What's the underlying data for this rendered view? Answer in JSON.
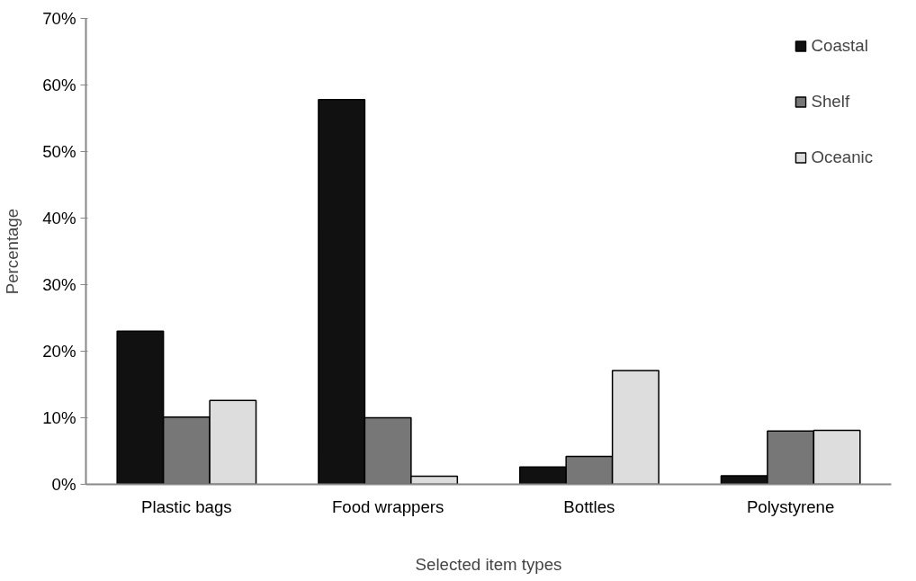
{
  "chart_data": {
    "type": "bar",
    "xlabel": "Selected item types",
    "ylabel": "Percentage",
    "categories": [
      "Plastic bags",
      "Food wrappers",
      "Bottles",
      "Polystyrene"
    ],
    "series": [
      {
        "name": "Coastal",
        "color": "#111111",
        "values": [
          23,
          57.8,
          2.6,
          1.3
        ]
      },
      {
        "name": "Shelf",
        "color": "#777777",
        "values": [
          10.1,
          10,
          4.2,
          8
        ]
      },
      {
        "name": "Oceanic",
        "color": "#dddddd",
        "values": [
          12.6,
          1.2,
          17.1,
          8.1
        ]
      }
    ],
    "ylim": [
      0,
      70
    ],
    "yticks": [
      {
        "value": 0,
        "label": "0%"
      },
      {
        "value": 10,
        "label": "10%"
      },
      {
        "value": 20,
        "label": "20%"
      },
      {
        "value": 30,
        "label": "30%"
      },
      {
        "value": 40,
        "label": "40%"
      },
      {
        "value": 50,
        "label": "50%"
      },
      {
        "value": 60,
        "label": "60%"
      },
      {
        "value": 70,
        "label": "70%"
      }
    ],
    "legend": "top right",
    "grid": false
  }
}
